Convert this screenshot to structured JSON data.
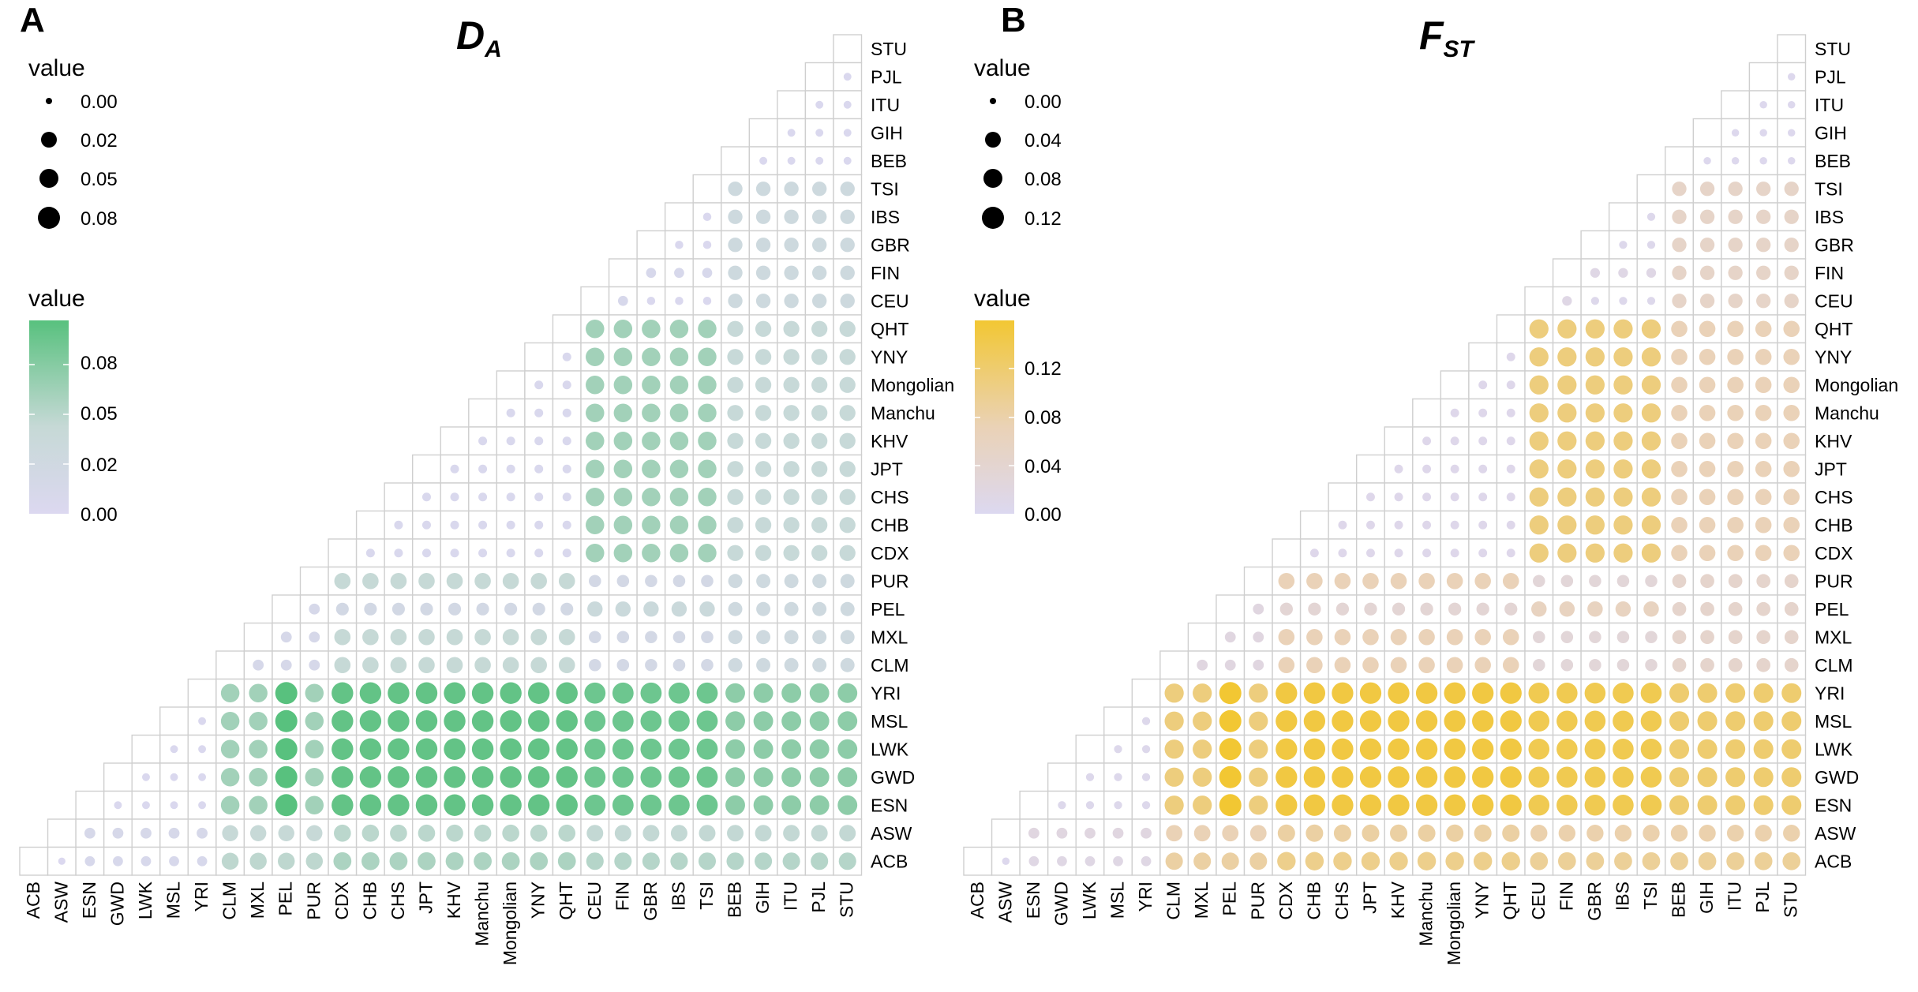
{
  "panels": [
    {
      "letter": "A",
      "title_main": "D",
      "title_sub": "A",
      "size_legend": {
        "title": "value",
        "labels": [
          "0.00",
          "0.02",
          "0.05",
          "0.08"
        ]
      },
      "color_legend": {
        "title": "value",
        "labels": [
          "0.08",
          "0.05",
          "0.02",
          "0.00"
        ],
        "low_color": "#dcd8f0",
        "mid_color": "#c6d9d6",
        "high_color": "#58c17e"
      }
    },
    {
      "letter": "B",
      "title_main": "F",
      "title_sub": "ST",
      "size_legend": {
        "title": "value",
        "labels": [
          "0.00",
          "0.04",
          "0.08",
          "0.12"
        ]
      },
      "color_legend": {
        "title": "value",
        "labels": [
          "0.12",
          "0.08",
          "0.04",
          "0.00"
        ],
        "low_color": "#dcd8f0",
        "mid_color": "#ead2b6",
        "high_color": "#f2c733"
      }
    }
  ],
  "chart_data": [
    {
      "type": "heatmap",
      "title": "DA",
      "x_categories": [
        "ACB",
        "ASW",
        "ESN",
        "GWD",
        "LWK",
        "MSL",
        "YRI",
        "CLM",
        "MXL",
        "PEL",
        "PUR",
        "CDX",
        "CHB",
        "CHS",
        "JPT",
        "KHV",
        "Manchu",
        "Mongolian",
        "YNY",
        "QHT",
        "CEU",
        "FIN",
        "GBR",
        "IBS",
        "TSI",
        "BEB",
        "GIH",
        "ITU",
        "PJL",
        "STU"
      ],
      "y_categories_top_to_bottom": [
        "STU",
        "PJL",
        "ITU",
        "GIH",
        "BEB",
        "TSI",
        "IBS",
        "GBR",
        "FIN",
        "CEU",
        "QHT",
        "YNY",
        "Mongolian",
        "Manchu",
        "KHV",
        "JPT",
        "CHS",
        "CHB",
        "CDX",
        "PUR",
        "PEL",
        "MXL",
        "CLM",
        "YRI",
        "MSL",
        "LWK",
        "GWD",
        "ESN",
        "ASW",
        "ACB"
      ],
      "group_values": {
        "AFR-AFR": 0.003,
        "AFR-AMR": 0.06,
        "AFR-EAS": 0.09,
        "AFR-EUR": 0.085,
        "AFR-SAS": 0.07,
        "AMR-AMR": 0.012,
        "AMR-EAS": 0.042,
        "AMR-EUR": 0.018,
        "AMR-SAS": 0.028,
        "EAS-EAS": 0.005,
        "EAS-EUR": 0.06,
        "EAS-SAS": 0.04,
        "EUR-EUR": 0.004,
        "EUR-SAS": 0.03,
        "SAS-SAS": 0.003
      },
      "special_pairs": {
        "ACB-ASW": 0.002,
        "ACB-AFR": 0.009,
        "ASW-AFR": 0.012,
        "ACB-nonAFR": 0.055,
        "ASW-nonAFR": 0.048,
        "PEL-AFR": 0.095,
        "PEL-EAS": 0.02,
        "PEL-EUR": 0.035
      },
      "value_range": [
        0,
        0.095
      ],
      "size_legend_values": [
        0.0,
        0.02,
        0.05,
        0.08
      ],
      "color_scale_ticks": [
        0.0,
        0.02,
        0.05,
        0.08
      ]
    },
    {
      "type": "heatmap",
      "title": "FST",
      "x_categories": [
        "ACB",
        "ASW",
        "ESN",
        "GWD",
        "LWK",
        "MSL",
        "YRI",
        "CLM",
        "MXL",
        "PEL",
        "PUR",
        "CDX",
        "CHB",
        "CHS",
        "JPT",
        "KHV",
        "Manchu",
        "Mongolian",
        "YNY",
        "QHT",
        "CEU",
        "FIN",
        "GBR",
        "IBS",
        "TSI",
        "BEB",
        "GIH",
        "ITU",
        "PJL",
        "STU"
      ],
      "y_categories_top_to_bottom": [
        "STU",
        "PJL",
        "ITU",
        "GIH",
        "BEB",
        "TSI",
        "IBS",
        "GBR",
        "FIN",
        "CEU",
        "QHT",
        "YNY",
        "Mongolian",
        "Manchu",
        "KHV",
        "JPT",
        "CHS",
        "CHB",
        "CDX",
        "PUR",
        "PEL",
        "MXL",
        "CLM",
        "YRI",
        "MSL",
        "LWK",
        "GWD",
        "ESN",
        "ASW",
        "ACB"
      ],
      "group_values": {
        "AFR-AFR": 0.006,
        "AFR-AMR": 0.11,
        "AFR-EAS": 0.15,
        "AFR-EUR": 0.14,
        "AFR-SAS": 0.12,
        "AMR-AMR": 0.02,
        "AMR-EAS": 0.07,
        "AMR-EUR": 0.03,
        "AMR-SAS": 0.045,
        "EAS-EAS": 0.008,
        "EAS-EUR": 0.11,
        "EAS-SAS": 0.07,
        "EUR-EUR": 0.006,
        "EUR-SAS": 0.05,
        "SAS-SAS": 0.004
      },
      "special_pairs": {
        "ACB-ASW": 0.004,
        "ACB-AFR": 0.015,
        "ASW-AFR": 0.02,
        "ACB-nonAFR": 0.1,
        "ASW-nonAFR": 0.085,
        "PEL-AFR": 0.16,
        "PEL-EAS": 0.035,
        "PEL-EUR": 0.06
      },
      "value_range": [
        0,
        0.16
      ],
      "size_legend_values": [
        0.0,
        0.04,
        0.08,
        0.12
      ],
      "color_scale_ticks": [
        0.0,
        0.04,
        0.08,
        0.12
      ]
    }
  ]
}
